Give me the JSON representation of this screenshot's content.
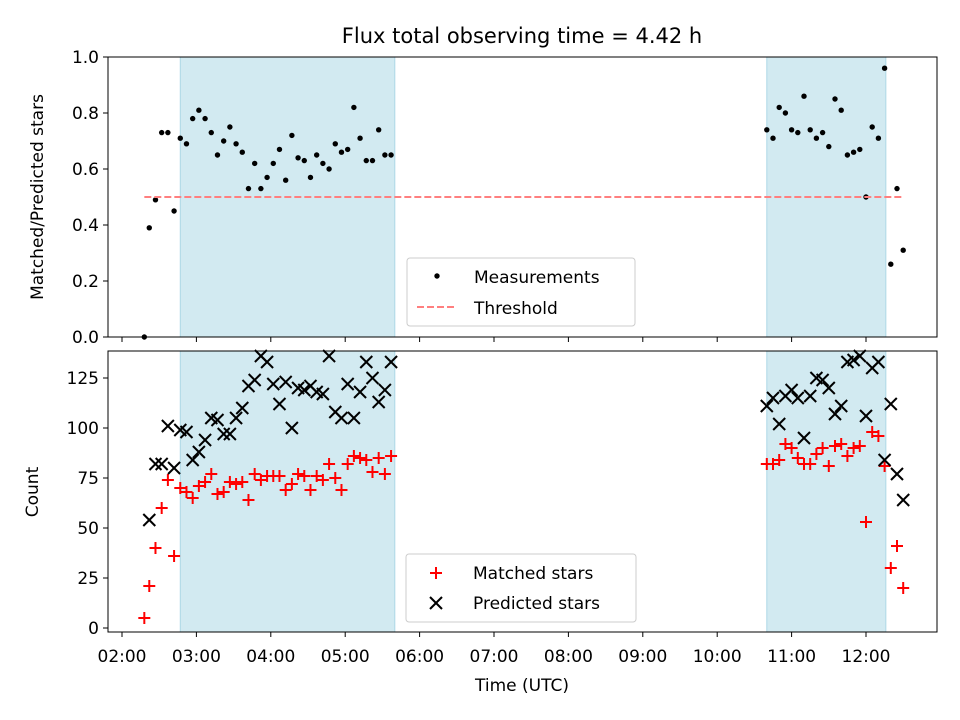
{
  "chart_data": [
    {
      "type": "scatter",
      "title": "Flux total observing time = 4.42 h",
      "xlabel": "",
      "ylabel": "Matched/Predicted stars",
      "xlim": [
        "02:00",
        "13:00"
      ],
      "ylim": [
        0,
        1.0
      ],
      "yticks": [
        "0.0",
        "0.2",
        "0.4",
        "0.6",
        "0.8",
        "1.0"
      ],
      "shaded_intervals": [
        [
          "02:47",
          "05:40"
        ],
        [
          "10:40",
          "12:16"
        ]
      ],
      "shade_color": "#add8e6",
      "legend_position": "lower center",
      "series": [
        {
          "name": "Measurements",
          "marker": "dot",
          "color": "#000000",
          "points": [
            [
              "02:18",
              0.0
            ],
            [
              "02:22",
              0.39
            ],
            [
              "02:27",
              0.49
            ],
            [
              "02:32",
              0.73
            ],
            [
              "02:37",
              0.73
            ],
            [
              "02:42",
              0.45
            ],
            [
              "02:47",
              0.71
            ],
            [
              "02:52",
              0.69
            ],
            [
              "02:57",
              0.78
            ],
            [
              "03:02",
              0.81
            ],
            [
              "03:07",
              0.78
            ],
            [
              "03:12",
              0.73
            ],
            [
              "03:17",
              0.65
            ],
            [
              "03:22",
              0.7
            ],
            [
              "03:27",
              0.75
            ],
            [
              "03:32",
              0.69
            ],
            [
              "03:37",
              0.66
            ],
            [
              "03:42",
              0.53
            ],
            [
              "03:47",
              0.62
            ],
            [
              "03:52",
              0.53
            ],
            [
              "03:57",
              0.57
            ],
            [
              "04:02",
              0.62
            ],
            [
              "04:07",
              0.67
            ],
            [
              "04:12",
              0.56
            ],
            [
              "04:17",
              0.72
            ],
            [
              "04:22",
              0.64
            ],
            [
              "04:27",
              0.63
            ],
            [
              "04:32",
              0.57
            ],
            [
              "04:37",
              0.65
            ],
            [
              "04:42",
              0.62
            ],
            [
              "04:47",
              0.6
            ],
            [
              "04:52",
              0.69
            ],
            [
              "04:57",
              0.66
            ],
            [
              "05:02",
              0.67
            ],
            [
              "05:07",
              0.82
            ],
            [
              "05:12",
              0.71
            ],
            [
              "05:17",
              0.63
            ],
            [
              "05:22",
              0.63
            ],
            [
              "05:27",
              0.74
            ],
            [
              "05:32",
              0.65
            ],
            [
              "05:37",
              0.65
            ],
            [
              "10:40",
              0.74
            ],
            [
              "10:45",
              0.71
            ],
            [
              "10:50",
              0.82
            ],
            [
              "10:55",
              0.8
            ],
            [
              "11:00",
              0.74
            ],
            [
              "11:05",
              0.73
            ],
            [
              "11:10",
              0.86
            ],
            [
              "11:15",
              0.74
            ],
            [
              "11:20",
              0.71
            ],
            [
              "11:25",
              0.73
            ],
            [
              "11:30",
              0.68
            ],
            [
              "11:35",
              0.85
            ],
            [
              "11:40",
              0.81
            ],
            [
              "11:45",
              0.65
            ],
            [
              "11:50",
              0.66
            ],
            [
              "11:55",
              0.67
            ],
            [
              "12:00",
              0.5
            ],
            [
              "12:05",
              0.75
            ],
            [
              "12:10",
              0.71
            ],
            [
              "12:15",
              0.96
            ],
            [
              "12:20",
              0.26
            ],
            [
              "12:25",
              0.53
            ],
            [
              "12:30",
              0.31
            ]
          ]
        },
        {
          "name": "Threshold",
          "marker": "dashed-line",
          "color": "#ff7f7f",
          "points": [
            [
              "02:18",
              0.5
            ],
            [
              "12:30",
              0.5
            ]
          ]
        }
      ]
    },
    {
      "type": "scatter",
      "title": "",
      "xlabel": "Time (UTC)",
      "ylabel": "Count",
      "xlim": [
        "02:00",
        "13:00"
      ],
      "ylim": [
        0,
        140
      ],
      "xticks": [
        "02:00",
        "03:00",
        "04:00",
        "05:00",
        "06:00",
        "07:00",
        "08:00",
        "09:00",
        "10:00",
        "11:00",
        "12:00"
      ],
      "yticks": [
        "0",
        "25",
        "50",
        "75",
        "100",
        "125"
      ],
      "shaded_intervals": [
        [
          "02:47",
          "05:40"
        ],
        [
          "10:40",
          "12:16"
        ]
      ],
      "shade_color": "#add8e6",
      "legend_position": "lower center",
      "series": [
        {
          "name": "Matched stars",
          "marker": "plus",
          "color": "#ff0000",
          "points": [
            [
              "02:18",
              5
            ],
            [
              "02:22",
              21
            ],
            [
              "02:27",
              40
            ],
            [
              "02:32",
              60
            ],
            [
              "02:37",
              74
            ],
            [
              "02:42",
              36
            ],
            [
              "02:47",
              70
            ],
            [
              "02:52",
              68
            ],
            [
              "02:57",
              65
            ],
            [
              "03:02",
              71
            ],
            [
              "03:07",
              73
            ],
            [
              "03:12",
              77
            ],
            [
              "03:17",
              67
            ],
            [
              "03:22",
              68
            ],
            [
              "03:27",
              73
            ],
            [
              "03:32",
              72
            ],
            [
              "03:37",
              73
            ],
            [
              "03:42",
              64
            ],
            [
              "03:47",
              77
            ],
            [
              "03:52",
              74
            ],
            [
              "03:57",
              76
            ],
            [
              "04:02",
              76
            ],
            [
              "04:07",
              76
            ],
            [
              "04:12",
              69
            ],
            [
              "04:17",
              72
            ],
            [
              "04:22",
              77
            ],
            [
              "04:27",
              76
            ],
            [
              "04:32",
              69
            ],
            [
              "04:37",
              76
            ],
            [
              "04:42",
              74
            ],
            [
              "04:47",
              82
            ],
            [
              "04:52",
              75
            ],
            [
              "04:57",
              69
            ],
            [
              "05:02",
              82
            ],
            [
              "05:07",
              86
            ],
            [
              "05:12",
              85
            ],
            [
              "05:17",
              84
            ],
            [
              "05:22",
              78
            ],
            [
              "05:27",
              85
            ],
            [
              "05:32",
              77
            ],
            [
              "05:37",
              86
            ],
            [
              "10:40",
              82
            ],
            [
              "10:45",
              82
            ],
            [
              "10:50",
              84
            ],
            [
              "10:55",
              92
            ],
            [
              "11:00",
              90
            ],
            [
              "11:05",
              85
            ],
            [
              "11:10",
              82
            ],
            [
              "11:15",
              82
            ],
            [
              "11:20",
              87
            ],
            [
              "11:25",
              90
            ],
            [
              "11:30",
              81
            ],
            [
              "11:35",
              91
            ],
            [
              "11:40",
              92
            ],
            [
              "11:45",
              86
            ],
            [
              "11:50",
              90
            ],
            [
              "11:55",
              91
            ],
            [
              "12:00",
              53
            ],
            [
              "12:05",
              98
            ],
            [
              "12:10",
              96
            ],
            [
              "12:15",
              81
            ],
            [
              "12:20",
              30
            ],
            [
              "12:25",
              41
            ],
            [
              "12:30",
              20
            ]
          ]
        },
        {
          "name": "Predicted stars",
          "marker": "x",
          "color": "#000000",
          "points": [
            [
              "02:22",
              54
            ],
            [
              "02:27",
              82
            ],
            [
              "02:32",
              82
            ],
            [
              "02:37",
              101
            ],
            [
              "02:42",
              80
            ],
            [
              "02:47",
              99
            ],
            [
              "02:52",
              98
            ],
            [
              "02:57",
              84
            ],
            [
              "03:02",
              88
            ],
            [
              "03:07",
              94
            ],
            [
              "03:12",
              105
            ],
            [
              "03:17",
              104
            ],
            [
              "03:22",
              97
            ],
            [
              "03:27",
              97
            ],
            [
              "03:32",
              105
            ],
            [
              "03:37",
              110
            ],
            [
              "03:42",
              121
            ],
            [
              "03:47",
              124
            ],
            [
              "03:52",
              136
            ],
            [
              "03:57",
              133
            ],
            [
              "04:02",
              122
            ],
            [
              "04:07",
              112
            ],
            [
              "04:12",
              123
            ],
            [
              "04:17",
              100
            ],
            [
              "04:22",
              120
            ],
            [
              "04:27",
              119
            ],
            [
              "04:32",
              121
            ],
            [
              "04:37",
              118
            ],
            [
              "04:42",
              117
            ],
            [
              "04:47",
              136
            ],
            [
              "04:52",
              108
            ],
            [
              "04:57",
              105
            ],
            [
              "05:02",
              122
            ],
            [
              "05:07",
              105
            ],
            [
              "05:12",
              118
            ],
            [
              "05:17",
              133
            ],
            [
              "05:22",
              125
            ],
            [
              "05:27",
              113
            ],
            [
              "05:32",
              119
            ],
            [
              "05:37",
              133
            ],
            [
              "10:40",
              111
            ],
            [
              "10:45",
              115
            ],
            [
              "10:50",
              102
            ],
            [
              "10:55",
              116
            ],
            [
              "11:00",
              119
            ],
            [
              "11:05",
              115
            ],
            [
              "11:10",
              95
            ],
            [
              "11:15",
              116
            ],
            [
              "11:20",
              125
            ],
            [
              "11:25",
              124
            ],
            [
              "11:30",
              120
            ],
            [
              "11:35",
              107
            ],
            [
              "11:40",
              111
            ],
            [
              "11:45",
              133
            ],
            [
              "11:50",
              134
            ],
            [
              "11:55",
              136
            ],
            [
              "12:00",
              106
            ],
            [
              "12:05",
              130
            ],
            [
              "12:10",
              133
            ],
            [
              "12:15",
              84
            ],
            [
              "12:20",
              112
            ],
            [
              "12:25",
              77
            ],
            [
              "12:30",
              64
            ]
          ]
        }
      ]
    }
  ]
}
